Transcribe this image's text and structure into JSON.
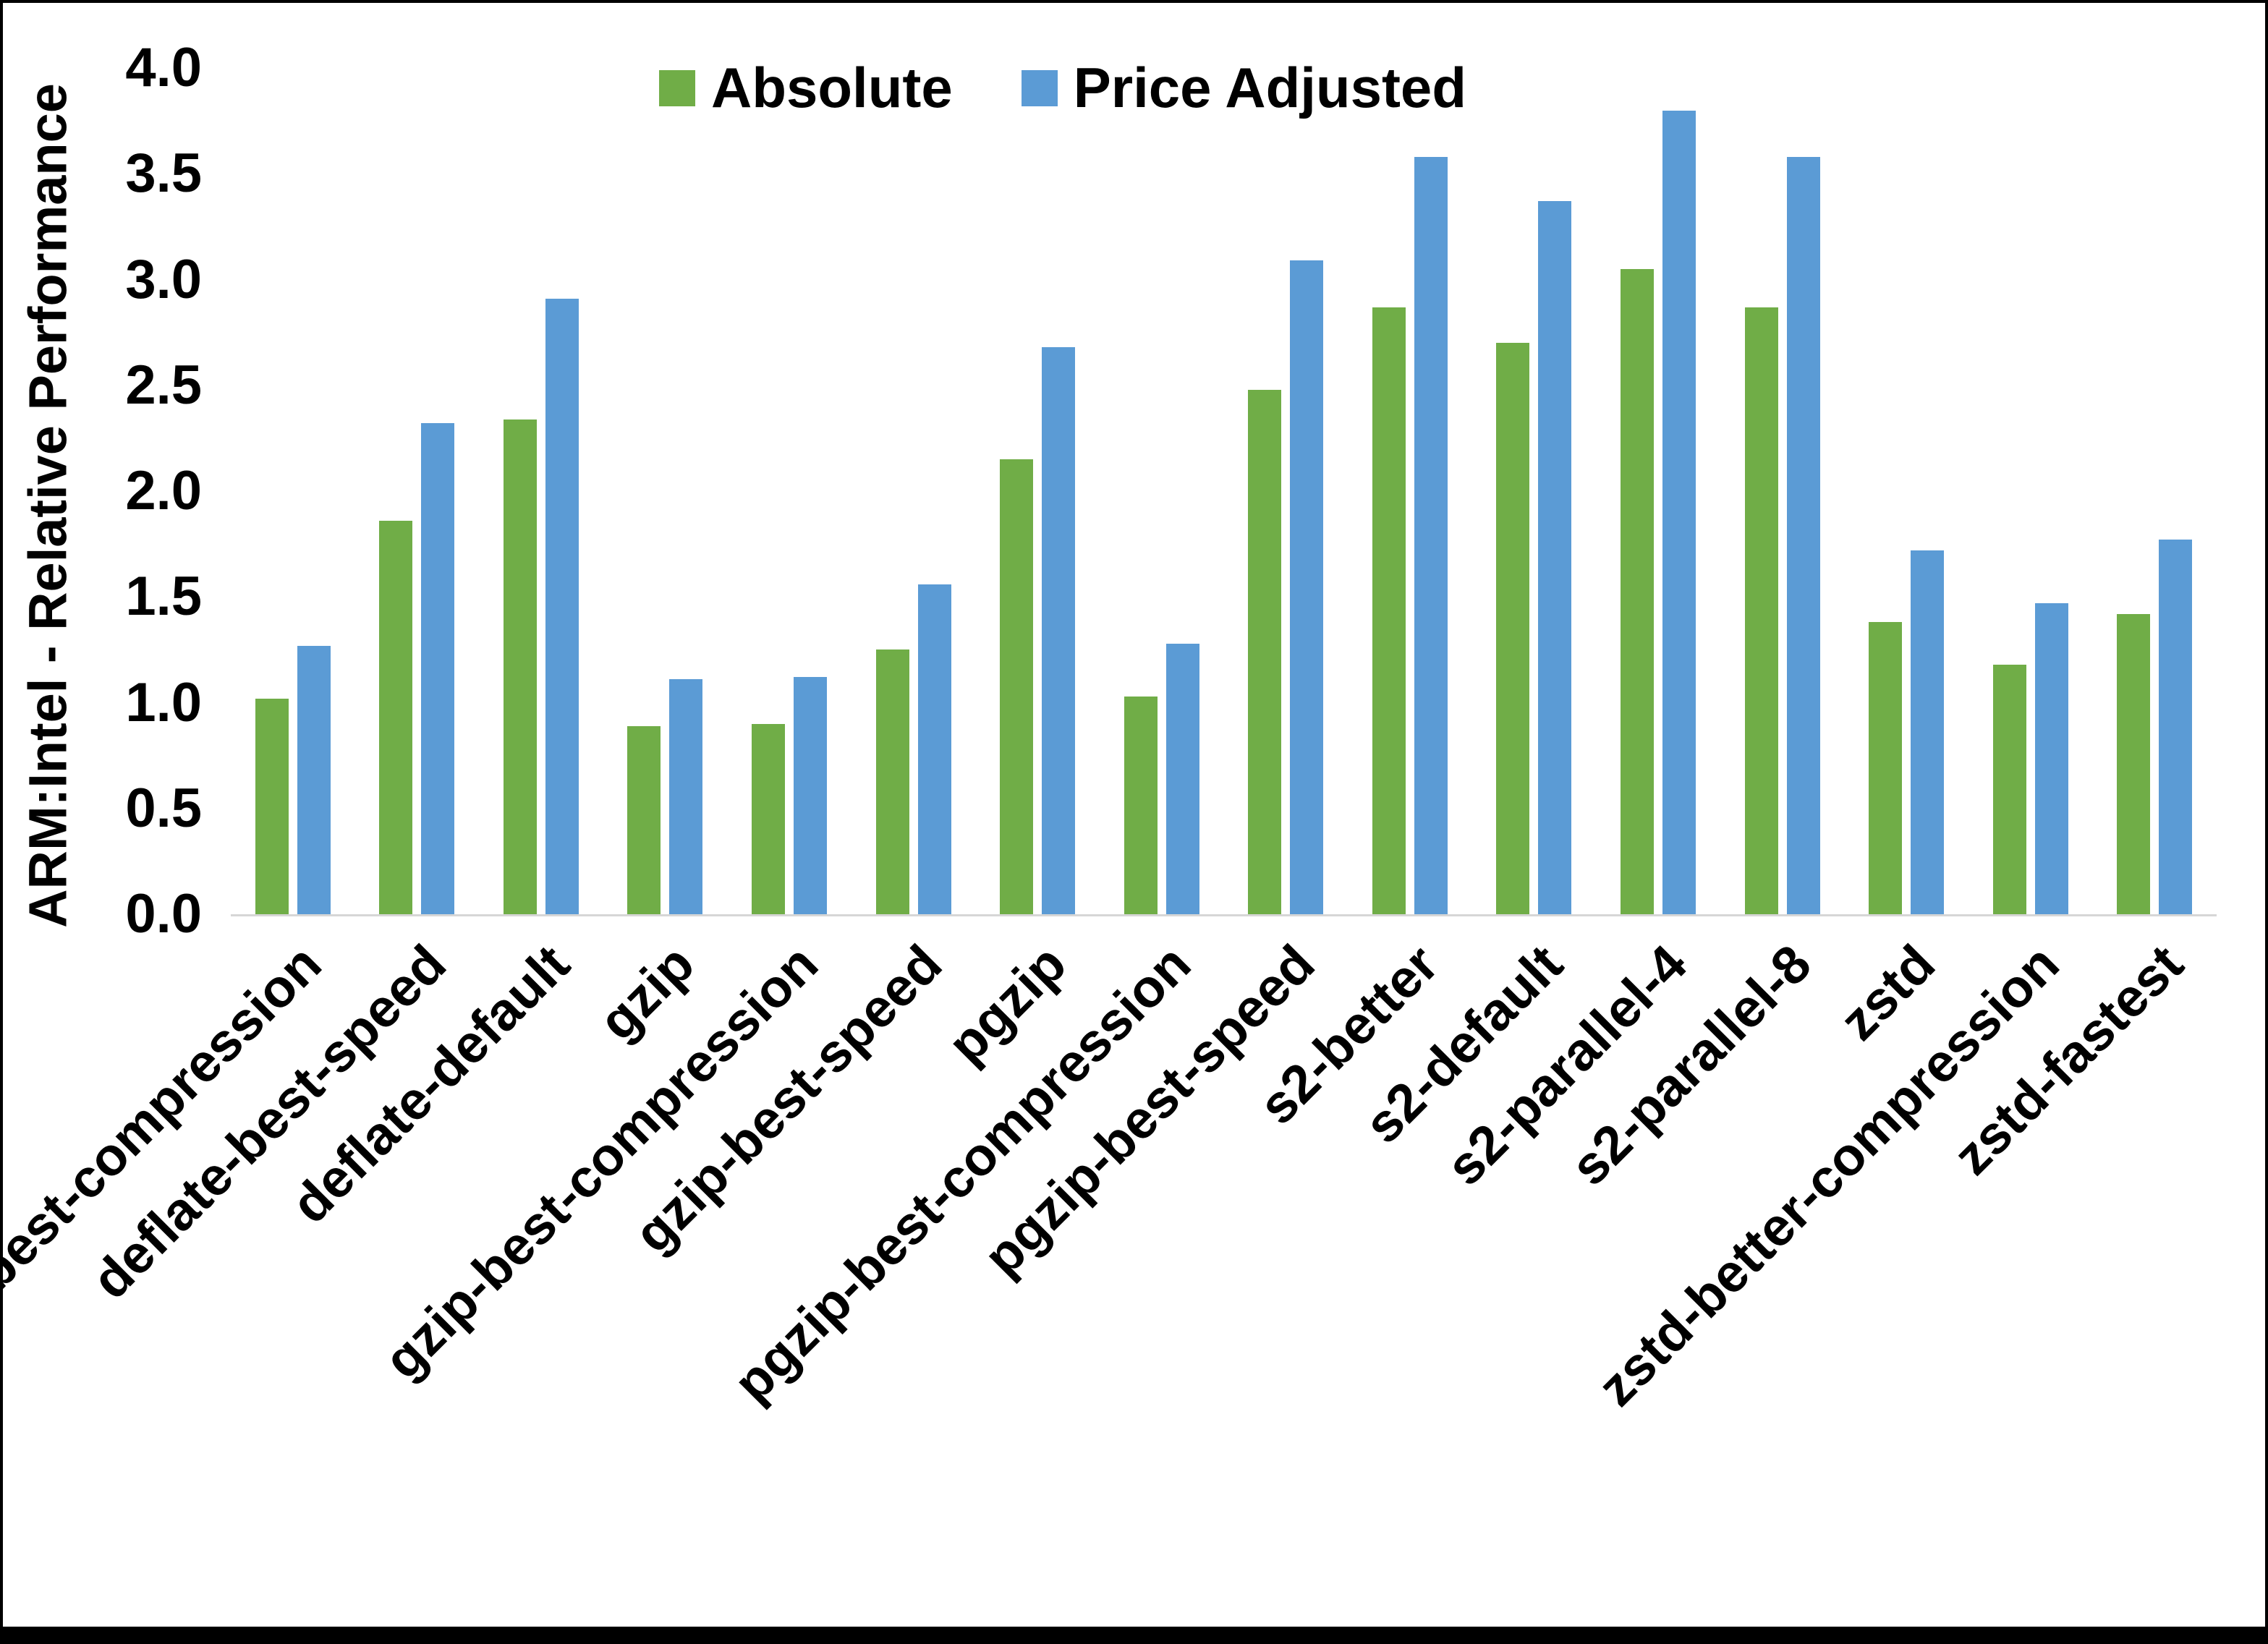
{
  "chart": {
    "ylabel": "ARM:Intel - Relative Performance"
  },
  "chart_data": {
    "type": "bar",
    "title": "",
    "xlabel": "",
    "ylabel": "ARM:Intel - Relative Performance",
    "ylim": [
      0.0,
      4.0
    ],
    "ytick_step": 0.5,
    "grid": false,
    "legend_position": "top",
    "categories": [
      "deflate-best-compression",
      "deflate-best-speed",
      "deflate-default",
      "gzip",
      "gzip-best-compression",
      "gzip-best-speed",
      "pgzip",
      "pgzip-best-compression",
      "pgzip-best-speed",
      "s2-better",
      "s2-default",
      "s2-parallel-4",
      "s2-parallel-8",
      "zstd",
      "zstd-better-compression",
      "zstd-fastest"
    ],
    "series": [
      {
        "name": "Absolute",
        "color": "#70AD47",
        "values": [
          1.02,
          1.86,
          2.34,
          0.89,
          0.9,
          1.25,
          2.15,
          1.03,
          2.48,
          2.87,
          2.7,
          3.05,
          2.87,
          1.38,
          1.18,
          1.42
        ]
      },
      {
        "name": "Price Adjusted",
        "color": "#5B9BD5",
        "values": [
          1.27,
          2.32,
          2.91,
          1.11,
          1.12,
          1.56,
          2.68,
          1.28,
          3.09,
          3.58,
          3.37,
          3.8,
          3.58,
          1.72,
          1.47,
          1.77
        ]
      }
    ]
  }
}
